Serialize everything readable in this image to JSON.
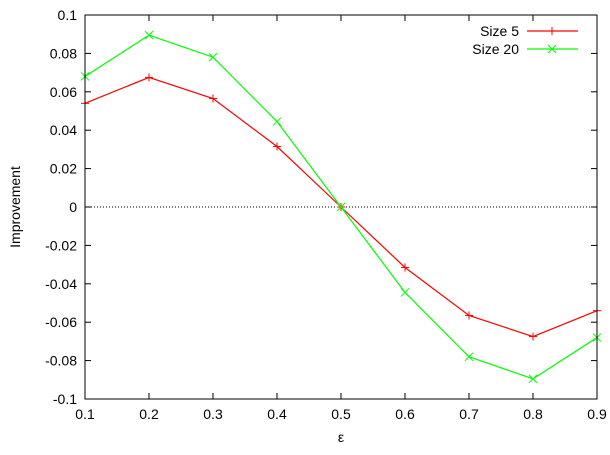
{
  "chart_data": {
    "type": "line",
    "title": "",
    "xlabel": "ε",
    "ylabel": "Improvement",
    "xlim": [
      0.1,
      0.9
    ],
    "ylim": [
      -0.1,
      0.1
    ],
    "xticks": [
      "0.1",
      "0.2",
      "0.3",
      "0.4",
      "0.5",
      "0.6",
      "0.7",
      "0.8",
      "0.9"
    ],
    "yticks": [
      "0.1",
      "0.08",
      "0.06",
      "0.04",
      "0.02",
      "0",
      "-0.02",
      "-0.04",
      "-0.06",
      "-0.08",
      "-0.1"
    ],
    "grid": false,
    "zero_line": true,
    "legend": "top-right",
    "x": [
      0.1,
      0.2,
      0.3,
      0.4,
      0.5,
      0.6,
      0.7,
      0.8,
      0.9
    ],
    "series": [
      {
        "name": "Size 5",
        "color": "#ff0000",
        "marker": "plus",
        "values": [
          0.054,
          0.0675,
          0.0565,
          0.0315,
          0.0,
          -0.0315,
          -0.0565,
          -0.0675,
          -0.054
        ]
      },
      {
        "name": "Size 20",
        "color": "#00ff00",
        "marker": "cross",
        "values": [
          0.068,
          0.0895,
          0.078,
          0.0445,
          0.0,
          -0.0445,
          -0.078,
          -0.0895,
          -0.068
        ]
      }
    ]
  }
}
